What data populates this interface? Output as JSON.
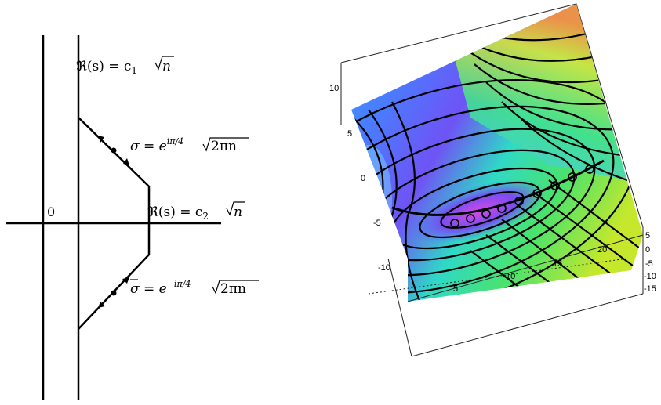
{
  "left_diagram": {
    "origin_label": "0",
    "vertical_line_label": {
      "prefix": "ℜ(s) = c",
      "sub": "1",
      "suffix": "n"
    },
    "corner_label": {
      "prefix": "ℜ(s) = c",
      "sub": "2",
      "suffix": "n"
    },
    "upper_saddle_label": {
      "lhs": "σ = e",
      "exp": "iπ/4",
      "suffix": "2πn"
    },
    "lower_saddle_label": {
      "lhs": "σ = e",
      "exp": "−iπ/4",
      "suffix": "2πn"
    }
  },
  "surface_plot": {
    "vertical_ticks": [
      "10",
      "5",
      "0",
      "-5",
      "-10"
    ],
    "front_axis_ticks": [
      "5",
      "10",
      "15",
      "20"
    ],
    "right_axis_ticks": [
      "5",
      "0",
      "-5",
      "-10",
      "-15"
    ]
  }
}
